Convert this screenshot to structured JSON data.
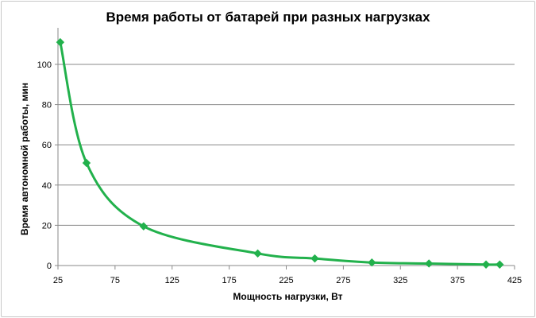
{
  "chart_data": {
    "type": "line",
    "title": "Время работы  от батарей  при разных  нагрузках",
    "xlabel": "Мощность нагрузки, Вт",
    "ylabel": "Время автономной работы, мин",
    "xlim": [
      25,
      425
    ],
    "ylim": [
      0,
      110
    ],
    "x_ticks": [
      "25",
      "75",
      "125",
      "175",
      "225",
      "275",
      "325",
      "375",
      "425"
    ],
    "y_ticks": [
      "0",
      "20",
      "40",
      "60",
      "80",
      "100"
    ],
    "grid": "horizontal",
    "legend": "none",
    "series": [
      {
        "color": "#22b14c",
        "marker": "diamond",
        "smooth": true,
        "x": [
          27,
          50,
          100,
          200,
          250,
          300,
          350,
          400,
          412
        ],
        "y": [
          111,
          51,
          19.5,
          6,
          3.5,
          1.5,
          1,
          0.5,
          0.5
        ]
      }
    ]
  }
}
